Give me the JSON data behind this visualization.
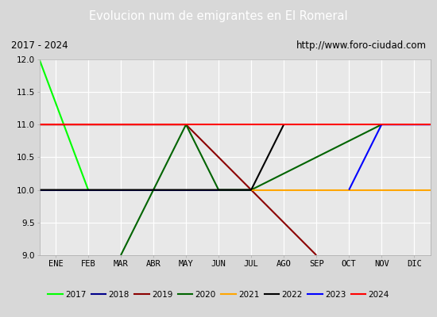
{
  "title": "Evolucion num de emigrantes en El Romeral",
  "subtitle_left": "2017 - 2024",
  "subtitle_right": "http://www.foro-ciudad.com",
  "ylim": [
    9.0,
    12.0
  ],
  "yticks": [
    9.0,
    9.5,
    10.0,
    10.5,
    11.0,
    11.5,
    12.0
  ],
  "months": [
    "ENE",
    "FEB",
    "MAR",
    "ABR",
    "MAY",
    "JUN",
    "JUL",
    "AGO",
    "SEP",
    "OCT",
    "NOV",
    "DIC"
  ],
  "xlim": [
    0.5,
    12.5
  ],
  "series": [
    {
      "label": "2017",
      "color": "#00ff00",
      "points": [
        [
          0.5,
          12.0
        ],
        [
          2.0,
          10.0
        ]
      ]
    },
    {
      "label": "2018",
      "color": "#00008b",
      "points": [
        [
          0.5,
          10.0
        ],
        [
          7.0,
          10.0
        ]
      ]
    },
    {
      "label": "2019",
      "color": "#8b0000",
      "points": [
        [
          0.5,
          11.0
        ],
        [
          5.0,
          11.0
        ],
        [
          9.0,
          9.0
        ]
      ]
    },
    {
      "label": "2020",
      "color": "#006400",
      "points": [
        [
          3.0,
          9.0
        ],
        [
          5.0,
          11.0
        ],
        [
          6.0,
          10.0
        ],
        [
          7.0,
          10.0
        ],
        [
          11.0,
          11.0
        ]
      ]
    },
    {
      "label": "2021",
      "color": "#ffa500",
      "points": [
        [
          7.0,
          10.0
        ],
        [
          12.5,
          10.0
        ]
      ]
    },
    {
      "label": "2022",
      "color": "#000000",
      "points": [
        [
          0.5,
          10.0
        ],
        [
          7.0,
          10.0
        ],
        [
          8.0,
          11.0
        ]
      ]
    },
    {
      "label": "2023",
      "color": "#0000ff",
      "points": [
        [
          10.0,
          10.0
        ],
        [
          11.0,
          11.0
        ],
        [
          12.5,
          11.0
        ]
      ]
    },
    {
      "label": "2024",
      "color": "#ff0000",
      "points": [
        [
          0.5,
          11.0
        ],
        [
          12.5,
          11.0
        ]
      ]
    }
  ],
  "bg_color": "#d8d8d8",
  "plot_bg_color": "#e8e8e8",
  "title_bg_color": "#4f86c6",
  "title_text_color": "#ffffff",
  "subtitle_bg_color": "#f0f0f0",
  "grid_color": "#ffffff",
  "linewidth": 1.5
}
